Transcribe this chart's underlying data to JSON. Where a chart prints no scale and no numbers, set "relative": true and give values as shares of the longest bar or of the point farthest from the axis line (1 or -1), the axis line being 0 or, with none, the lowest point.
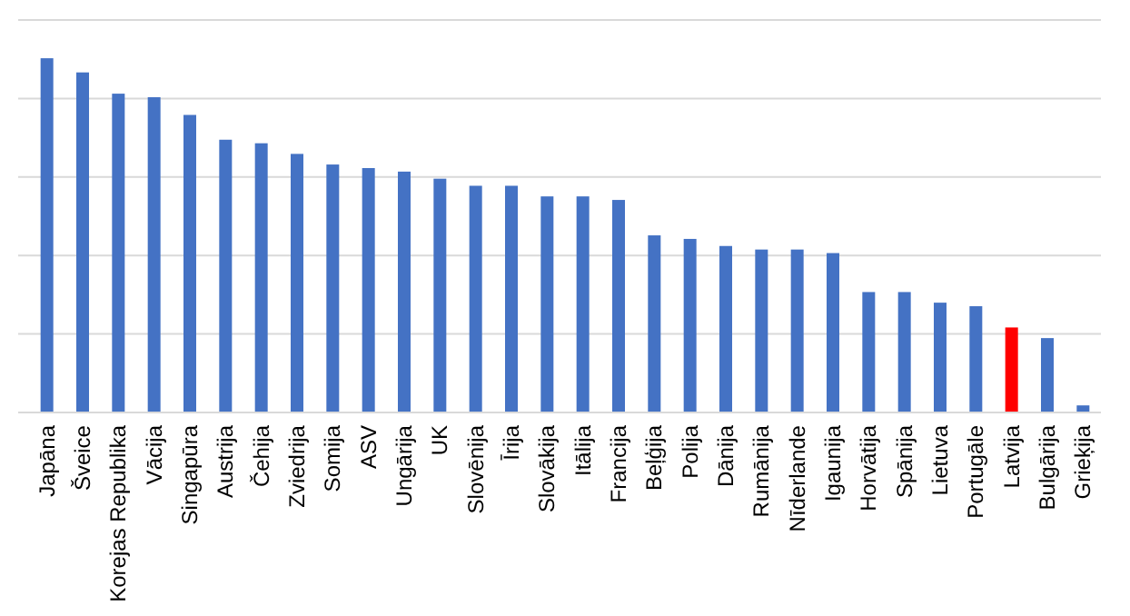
{
  "chart_data": {
    "type": "bar",
    "relative": true,
    "grid": true,
    "categories": [
      "Japāna",
      "Šveice",
      "Korejas Republika",
      "Vācija",
      "Singapūra",
      "Austrija",
      "Čehija",
      "Zviedrija",
      "Somija",
      "ASV",
      "Ungārija",
      "UK",
      "Slovēnija",
      "Īrija",
      "Slovākija",
      "Itālija",
      "Francija",
      "Beļģija",
      "Polija",
      "Dānija",
      "Rumānija",
      "Nīderlande",
      "Igaunija",
      "Horvātija",
      "Spānija",
      "Lietuva",
      "Portugāle",
      "Latvija",
      "Bulgārija",
      "Grieķija"
    ],
    "values": [
      1,
      0.96,
      0.9,
      0.89,
      0.84,
      0.77,
      0.76,
      0.73,
      0.7,
      0.69,
      0.68,
      0.66,
      0.64,
      0.64,
      0.61,
      0.61,
      0.6,
      0.5,
      0.49,
      0.47,
      0.46,
      0.46,
      0.45,
      0.34,
      0.34,
      0.31,
      0.3,
      0.24,
      0.21,
      0.02
    ],
    "colors": [
      "#4472c4",
      "#4472c4",
      "#4472c4",
      "#4472c4",
      "#4472c4",
      "#4472c4",
      "#4472c4",
      "#4472c4",
      "#4472c4",
      "#4472c4",
      "#4472c4",
      "#4472c4",
      "#4472c4",
      "#4472c4",
      "#4472c4",
      "#4472c4",
      "#4472c4",
      "#4472c4",
      "#4472c4",
      "#4472c4",
      "#4472c4",
      "#4472c4",
      "#4472c4",
      "#4472c4",
      "#4472c4",
      "#4472c4",
      "#4472c4",
      "#ff0000",
      "#4472c4",
      "#4472c4"
    ]
  }
}
